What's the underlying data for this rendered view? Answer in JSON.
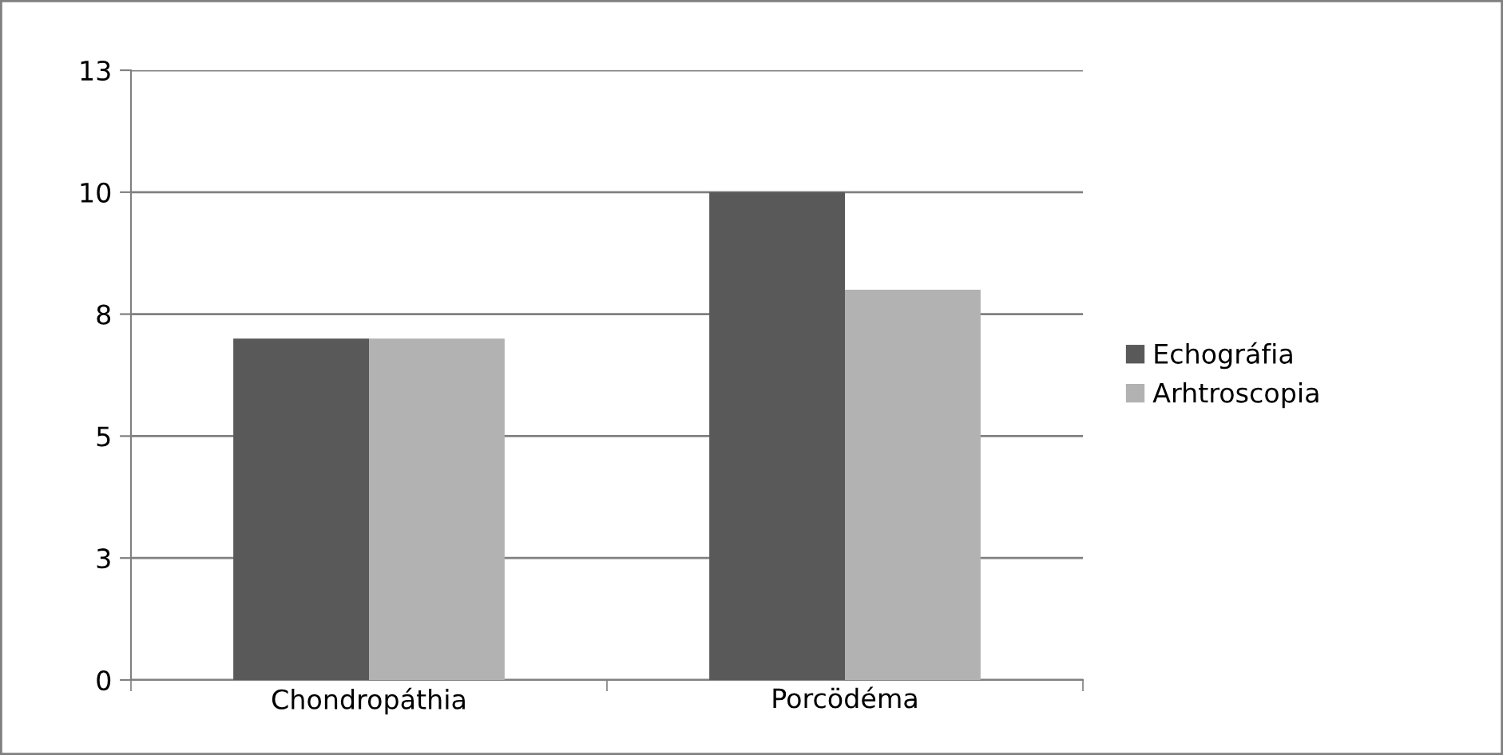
{
  "chart_data": {
    "type": "bar",
    "categories": [
      "Chondropáthia",
      "Porcödéma"
    ],
    "series": [
      {
        "name": "Echográfia",
        "color": "#595959",
        "values": [
          7,
          10
        ]
      },
      {
        "name": "Arhtroscopia",
        "color": "#b2b2b2",
        "values": [
          7,
          8
        ]
      }
    ],
    "ylim": [
      0,
      12.5
    ],
    "yticks": [
      0,
      {
        "value": 2.5,
        "label": "3"
      },
      5,
      {
        "value": 7.5,
        "label": "8"
      },
      10,
      {
        "value": 12.5,
        "label": "13"
      }
    ],
    "grid": "y",
    "legend": "right"
  }
}
